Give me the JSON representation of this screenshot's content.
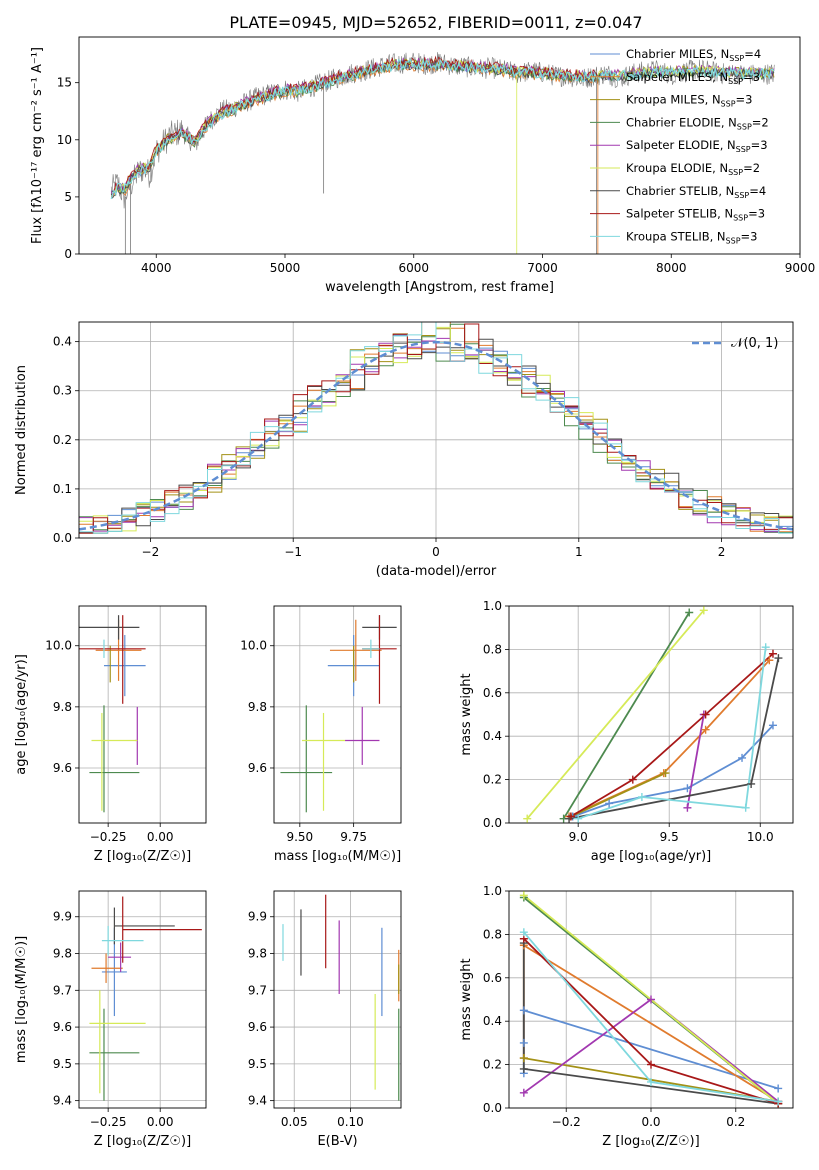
{
  "figure_title": "PLATE=0945, MJD=52652, FIBERID=0011, z=0.047",
  "series_colors": [
    "#5f8ed3",
    "#e07b2e",
    "#a39116",
    "#4d8a4f",
    "#a238b0",
    "#d6ea58",
    "#4a4a4a",
    "#a81818",
    "#7fd8de"
  ],
  "legend_labels": [
    "Chabrier MILES",
    "Salpeter MILES",
    "Kroupa MILES",
    "Chabrier ELODIE",
    "Salpeter ELODIE",
    "Kroupa ELODIE",
    "Chabrier STELIB",
    "Salpeter STELIB",
    "Kroupa STELIB"
  ],
  "legend_nssp": [
    "4",
    "3",
    "3",
    "2",
    "3",
    "2",
    "4",
    "3",
    "3"
  ],
  "chart_data": [
    {
      "id": "spectrum",
      "type": "line",
      "xlabel": "wavelength [Angstrom, rest frame]",
      "ylabel": "Flux [fλ10⁻¹⁷ erg cm⁻² s⁻¹ A⁻¹]",
      "xlim": [
        3400,
        9000
      ],
      "ylim": [
        0,
        19
      ],
      "xticks": [
        4000,
        5000,
        6000,
        7000,
        8000,
        9000
      ],
      "yticks": [
        0,
        5,
        10,
        15
      ],
      "grid": false,
      "legend_position": "right",
      "data_x": [
        3650,
        3700,
        3750,
        3800,
        3850,
        3900,
        3950,
        4000,
        4100,
        4200,
        4300,
        4400,
        4500,
        4600,
        4700,
        4800,
        4900,
        5000,
        5100,
        5200,
        5300,
        5400,
        5500,
        5600,
        5700,
        5800,
        5900,
        6000,
        6100,
        6200,
        6300,
        6400,
        6500,
        6600,
        6700,
        6800,
        6900,
        7000,
        7100,
        7200,
        7300,
        7400,
        7500,
        7600,
        7700,
        7800,
        7900,
        8000,
        8200,
        8400,
        8600,
        8800
      ],
      "data_y": [
        5.5,
        6.2,
        5.0,
        6.0,
        7.0,
        7.5,
        7.0,
        9.0,
        10.3,
        10.8,
        9.5,
        11.5,
        12.5,
        12.8,
        13.3,
        13.8,
        14.1,
        14.4,
        14.2,
        14.6,
        15.0,
        15.4,
        15.8,
        16.0,
        16.3,
        16.6,
        16.7,
        16.8,
        16.6,
        16.8,
        16.5,
        16.4,
        16.2,
        16.3,
        16.1,
        15.8,
        16.0,
        15.9,
        15.6,
        15.6,
        15.3,
        15.6,
        15.8,
        15.4,
        15.8,
        16.0,
        16.1,
        15.7,
        16.2,
        15.8,
        15.7,
        15.8
      ],
      "model_y": [
        5.2,
        5.8,
        5.6,
        6.5,
        7.2,
        7.4,
        7.6,
        9.1,
        10.1,
        10.5,
        9.9,
        11.4,
        12.2,
        12.7,
        13.2,
        13.6,
        14.0,
        14.3,
        14.3,
        14.6,
        14.9,
        15.3,
        15.6,
        15.9,
        16.2,
        16.4,
        16.6,
        16.6,
        16.6,
        16.6,
        16.5,
        16.4,
        16.3,
        16.2,
        16.1,
        15.9,
        15.9,
        15.8,
        15.7,
        15.6,
        15.5,
        15.5,
        15.6,
        15.6,
        15.7,
        15.8,
        15.9,
        15.9,
        16.0,
        15.9,
        15.8,
        15.8
      ]
    },
    {
      "id": "residuals",
      "type": "histogram",
      "xlabel": "(data-model)/error",
      "ylabel": "Normed distribution",
      "xlim": [
        -2.5,
        2.5
      ],
      "ylim": [
        0,
        0.44
      ],
      "xticks": [
        -2,
        -1,
        0,
        1,
        2
      ],
      "yticks": [
        0.0,
        0.1,
        0.2,
        0.3,
        0.4
      ],
      "grid": true,
      "legend": "𝒩(0, 1)",
      "legend_position": "top-right",
      "bin_width": 0.1,
      "reference_curve": "gaussian mean 0 sigma 1"
    },
    {
      "id": "age_vs_z",
      "type": "errorbar",
      "xlabel": "Z [log₁₀(Z/Z☉)]",
      "ylabel": "age [log₁₀(age/yr)]",
      "xlim": [
        -0.39,
        0.22
      ],
      "ylim": [
        9.42,
        10.13
      ],
      "xticks": [
        -0.25,
        0.0
      ],
      "yticks": [
        9.6,
        9.8,
        10.0
      ],
      "grid": true,
      "points": [
        {
          "x": -0.17,
          "xerr": [
            0.1,
            0.1
          ],
          "y": 9.935,
          "yerr": [
            0.1,
            0.1
          ]
        },
        {
          "x": -0.2,
          "xerr": [
            0.11,
            0.11
          ],
          "y": 9.985,
          "yerr": [
            0.1,
            0.1
          ]
        },
        {
          "x": -0.24,
          "xerr": [
            0.0,
            0.0
          ],
          "y": 9.94,
          "yerr": [
            0.06,
            0.06
          ]
        },
        {
          "x": -0.27,
          "xerr": [
            0.07,
            0.17
          ],
          "y": 9.585,
          "yerr": [
            0.13,
            0.22
          ]
        },
        {
          "x": -0.11,
          "xerr": [
            0.01,
            0.0
          ],
          "y": 9.69,
          "yerr": [
            0.08,
            0.11
          ]
        },
        {
          "x": -0.28,
          "xerr": [
            0.05,
            0.17
          ],
          "y": 9.69,
          "yerr": [
            0.23,
            0.09
          ]
        },
        {
          "x": -0.2,
          "xerr": [
            0.27,
            0.1
          ],
          "y": 10.06,
          "yerr": [
            0.04,
            0.04
          ]
        },
        {
          "x": -0.18,
          "xerr": [
            0.37,
            0.11
          ],
          "y": 9.99,
          "yerr": [
            0.18,
            0.11
          ]
        },
        {
          "x": -0.27,
          "xerr": [
            0.0,
            0.0
          ],
          "y": 9.99,
          "yerr": [
            0.03,
            0.03
          ]
        }
      ]
    },
    {
      "id": "age_vs_mass",
      "type": "errorbar",
      "xlabel": "mass [log₁₀(M/M☉)]",
      "ylabel": "",
      "xlim": [
        9.38,
        9.97
      ],
      "ylim": [
        9.42,
        10.13
      ],
      "xticks": [
        9.5,
        9.75
      ],
      "yticks": [
        9.6,
        9.8,
        10.0
      ],
      "grid": true,
      "points": [
        {
          "x": 9.75,
          "xerr": [
            0.12,
            0.12
          ],
          "y": 9.935,
          "yerr": [
            0.1,
            0.1
          ]
        },
        {
          "x": 9.76,
          "xerr": [
            0.12,
            0.12
          ],
          "y": 9.985,
          "yerr": [
            0.1,
            0.1
          ]
        },
        {
          "x": 9.75,
          "xerr": [
            0.0,
            0.0
          ],
          "y": 9.94,
          "yerr": [
            0.06,
            0.06
          ]
        },
        {
          "x": 9.53,
          "xerr": [
            0.12,
            0.12
          ],
          "y": 9.585,
          "yerr": [
            0.13,
            0.22
          ]
        },
        {
          "x": 9.79,
          "xerr": [
            0.08,
            0.08
          ],
          "y": 9.69,
          "yerr": [
            0.08,
            0.11
          ]
        },
        {
          "x": 9.61,
          "xerr": [
            0.1,
            0.1
          ],
          "y": 9.69,
          "yerr": [
            0.23,
            0.09
          ]
        },
        {
          "x": 9.87,
          "xerr": [
            0.08,
            0.08
          ],
          "y": 10.06,
          "yerr": [
            0.04,
            0.04
          ]
        },
        {
          "x": 9.87,
          "xerr": [
            0.08,
            0.08
          ],
          "y": 9.99,
          "yerr": [
            0.18,
            0.11
          ]
        },
        {
          "x": 9.83,
          "xerr": [
            0.04,
            0.04
          ],
          "y": 9.99,
          "yerr": [
            0.03,
            0.03
          ]
        }
      ]
    },
    {
      "id": "weight_vs_age",
      "type": "line",
      "xlabel": "age [log₁₀(age/yr)]",
      "ylabel": "mass weight",
      "xlim": [
        8.62,
        10.18
      ],
      "ylim": [
        0,
        1.0
      ],
      "xticks": [
        9.0,
        9.5,
        10.0
      ],
      "yticks": [
        0.0,
        0.2,
        0.4,
        0.6,
        0.8,
        1.0
      ],
      "grid": true,
      "series": [
        {
          "x": [
            8.97,
            9.17,
            9.6,
            9.9,
            10.07
          ],
          "y": [
            0.03,
            0.09,
            0.16,
            0.3,
            0.45
          ]
        },
        {
          "x": [
            8.95,
            9.47,
            9.7,
            10.05
          ],
          "y": [
            0.03,
            0.23,
            0.43,
            0.75
          ]
        },
        {
          "x": [
            8.96,
            9.48
          ],
          "y": [
            0.03,
            0.23
          ]
        },
        {
          "x": [
            8.92,
            9.61
          ],
          "y": [
            0.02,
            0.97
          ]
        },
        {
          "x": [
            9.6,
            9.69
          ],
          "y": [
            0.07,
            0.5
          ]
        },
        {
          "x": [
            8.72,
            9.69
          ],
          "y": [
            0.02,
            0.98
          ]
        },
        {
          "x": [
            8.95,
            9.95,
            10.1
          ],
          "y": [
            0.02,
            0.18,
            0.76
          ]
        },
        {
          "x": [
            8.96,
            9.3,
            9.7,
            10.07
          ],
          "y": [
            0.03,
            0.2,
            0.5,
            0.78
          ]
        },
        {
          "x": [
            9.0,
            9.35,
            9.92,
            10.03
          ],
          "y": [
            0.02,
            0.12,
            0.07,
            0.81
          ]
        }
      ]
    },
    {
      "id": "mass_vs_z",
      "type": "errorbar",
      "xlabel": "Z [log₁₀(Z/Z☉)]",
      "ylabel": "mass [log₁₀(M/M☉)]",
      "xlim": [
        -0.39,
        0.22
      ],
      "ylim": [
        9.38,
        9.97
      ],
      "xticks": [
        -0.25,
        0.0
      ],
      "yticks": [
        9.4,
        9.5,
        9.6,
        9.7,
        9.8,
        9.9
      ],
      "grid": true,
      "points": [
        {
          "x": -0.22,
          "xerr": [
            0.06,
            0.06
          ],
          "y": 9.75,
          "yerr": [
            0.12,
            0.12
          ]
        },
        {
          "x": -0.26,
          "xerr": [
            0.07,
            0.08
          ],
          "y": 9.76,
          "yerr": [
            0.04,
            0.04
          ]
        },
        {
          "x": -0.27,
          "xerr": [
            0.0,
            0.0
          ],
          "y": 9.75,
          "yerr": [
            0.0,
            0.0
          ]
        },
        {
          "x": -0.27,
          "xerr": [
            0.07,
            0.17
          ],
          "y": 9.53,
          "yerr": [
            0.13,
            0.12
          ]
        },
        {
          "x": -0.19,
          "xerr": [
            0.06,
            0.05
          ],
          "y": 9.79,
          "yerr": [
            0.04,
            0.04
          ]
        },
        {
          "x": -0.29,
          "xerr": [
            0.05,
            0.22
          ],
          "y": 9.61,
          "yerr": [
            0.19,
            0.09
          ]
        },
        {
          "x": -0.22,
          "xerr": [
            0.0,
            0.29
          ],
          "y": 9.875,
          "yerr": [
            0.05,
            0.05
          ]
        },
        {
          "x": -0.18,
          "xerr": [
            0.0,
            0.38
          ],
          "y": 9.865,
          "yerr": [
            0.09,
            0.09
          ]
        },
        {
          "x": -0.25,
          "xerr": [
            0.03,
            0.17
          ],
          "y": 9.835,
          "yerr": [
            0.04,
            0.04
          ]
        }
      ]
    },
    {
      "id": "mass_vs_ebv",
      "type": "errorbar",
      "xlabel": "E(B-V)",
      "ylabel": "",
      "xlim": [
        0.032,
        0.145
      ],
      "ylim": [
        9.38,
        9.97
      ],
      "xticks": [
        0.05,
        0.1
      ],
      "yticks": [
        9.4,
        9.5,
        9.6,
        9.7,
        9.8,
        9.9
      ],
      "grid": true,
      "points": [
        {
          "x": 0.128,
          "xerr": [
            0,
            0
          ],
          "y": 9.75,
          "yerr": [
            0.12,
            0.12
          ]
        },
        {
          "x": 0.143,
          "xerr": [
            0,
            0
          ],
          "y": 9.74,
          "yerr": [
            0.07,
            0.07
          ]
        },
        {
          "x": 0.143,
          "xerr": [
            0,
            0
          ],
          "y": 9.73,
          "yerr": [
            0.04,
            0.04
          ]
        },
        {
          "x": 0.143,
          "xerr": [
            0,
            0
          ],
          "y": 9.53,
          "yerr": [
            0.13,
            0.12
          ]
        },
        {
          "x": 0.09,
          "xerr": [
            0,
            0
          ],
          "y": 9.79,
          "yerr": [
            0.1,
            0.1
          ]
        },
        {
          "x": 0.122,
          "xerr": [
            0,
            0
          ],
          "y": 9.56,
          "yerr": [
            0.13,
            0.13
          ]
        },
        {
          "x": 0.056,
          "xerr": [
            0,
            0
          ],
          "y": 9.83,
          "yerr": [
            0.09,
            0.09
          ]
        },
        {
          "x": 0.078,
          "xerr": [
            0,
            0
          ],
          "y": 9.86,
          "yerr": [
            0.1,
            0.1
          ]
        },
        {
          "x": 0.04,
          "xerr": [
            0,
            0
          ],
          "y": 9.83,
          "yerr": [
            0.05,
            0.05
          ]
        }
      ]
    },
    {
      "id": "weight_vs_z",
      "type": "line",
      "xlabel": "Z [log₁₀(Z/Z☉)]",
      "ylabel": "mass weight",
      "xlim": [
        -0.335,
        0.335
      ],
      "ylim": [
        0,
        1.0
      ],
      "xticks": [
        -0.2,
        0.0,
        0.2
      ],
      "yticks": [
        0.0,
        0.2,
        0.4,
        0.6,
        0.8,
        1.0
      ],
      "grid": true,
      "series": [
        {
          "x": [
            -0.3,
            -0.3,
            -0.3,
            0.3
          ],
          "y": [
            0.16,
            0.3,
            0.45,
            0.09
          ]
        },
        {
          "x": [
            -0.3,
            -0.3,
            0.3
          ],
          "y": [
            0.23,
            0.75,
            0.03
          ]
        },
        {
          "x": [
            -0.3,
            0.3
          ],
          "y": [
            0.23,
            0.03
          ]
        },
        {
          "x": [
            -0.3,
            0.3
          ],
          "y": [
            0.97,
            0.02
          ]
        },
        {
          "x": [
            -0.3,
            0.0,
            0.3
          ],
          "y": [
            0.07,
            0.5,
            0.03
          ]
        },
        {
          "x": [
            -0.3,
            0.3
          ],
          "y": [
            0.98,
            0.02
          ]
        },
        {
          "x": [
            -0.3,
            -0.3,
            0.3
          ],
          "y": [
            0.76,
            0.18,
            0.02
          ]
        },
        {
          "x": [
            -0.3,
            0.0,
            0.3
          ],
          "y": [
            0.78,
            0.2,
            0.02
          ]
        },
        {
          "x": [
            -0.3,
            0.0,
            0.3
          ],
          "y": [
            0.81,
            0.12,
            0.03
          ]
        }
      ]
    }
  ]
}
